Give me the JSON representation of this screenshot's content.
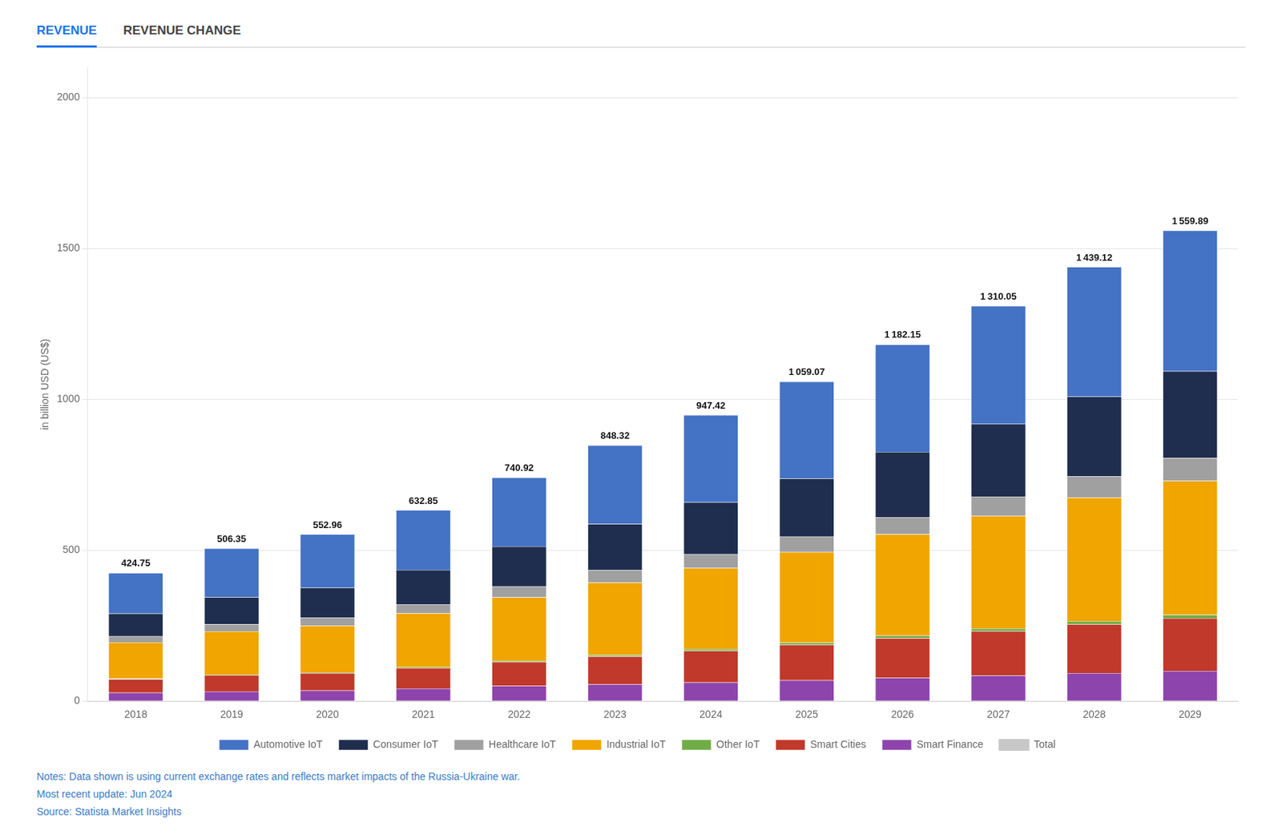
{
  "chart_data": {
    "type": "bar",
    "stacked": true,
    "grid": true,
    "legend": "bottom",
    "annotations": [
      "REVENUE",
      "REVENUE CHANGE",
      "Notes: Data shown is using current exchange rates and reflects market impacts of the Russia-Ukraine war.",
      "Most recent update: Jun 2024",
      "Source: Statista Market Insights"
    ],
    "y_label": "in billion USD (US$)",
    "categories": [
      "2018",
      "2019",
      "2020",
      "2021",
      "2022",
      "2023",
      "2024",
      "2025",
      "2026",
      "2027",
      "2028",
      "2029"
    ],
    "series": [
      {
        "name": "Smart Finance",
        "color": "#8e44ad",
        "values": [
          28,
          32,
          35,
          42,
          50,
          56,
          62,
          69,
          77,
          85,
          93,
          100
        ]
      },
      {
        "name": "Smart Cities",
        "color": "#c0392b",
        "values": [
          45,
          54,
          58,
          68,
          80,
          92,
          105,
          118,
          132,
          147,
          162,
          175
        ]
      },
      {
        "name": "Other IoT",
        "color": "#70ad47",
        "values": [
          2,
          2,
          2,
          3,
          4,
          5,
          6,
          7,
          8,
          9,
          10,
          11
        ]
      },
      {
        "name": "Industrial IoT",
        "color": "#f0a500",
        "values": [
          120,
          143,
          155,
          178,
          210,
          240,
          268,
          300,
          336,
          373,
          410,
          444
        ]
      },
      {
        "name": "Healthcare IoT",
        "color": "#a0a0a0",
        "values": [
          20,
          24,
          26,
          30,
          36,
          41,
          46,
          51,
          57,
          64,
          70,
          76
        ]
      },
      {
        "name": "Consumer IoT",
        "color": "#1f2d4e",
        "values": [
          75,
          90,
          100,
          114,
          133,
          153,
          172,
          193,
          216,
          241,
          265,
          288
        ]
      },
      {
        "name": "Automotive IoT",
        "color": "#4472c4",
        "values": [
          135,
          161,
          177,
          198,
          228,
          261,
          289,
          321,
          356,
          391,
          429,
          466
        ]
      },
      {
        "name": "Total",
        "color": "#c8c8c8",
        "type": "line",
        "line_style": "none",
        "marker": "none",
        "data_labels": true,
        "values": [
          424.75,
          506.35,
          552.96,
          632.85,
          740.92,
          848.32,
          947.42,
          1059.07,
          1182.15,
          1310.05,
          1439.12,
          1559.89
        ],
        "value_labels": [
          "424.75",
          "506.35",
          "552.96",
          "632.85",
          "740.92",
          "848.32",
          "947.42",
          "1 059.07",
          "1 182.15",
          "1 310.05",
          "1 439.12",
          "1 559.89"
        ]
      }
    ],
    "ylim": [
      0,
      2100
    ],
    "yticks": [
      0,
      500,
      1000,
      1500,
      2000
    ]
  }
}
